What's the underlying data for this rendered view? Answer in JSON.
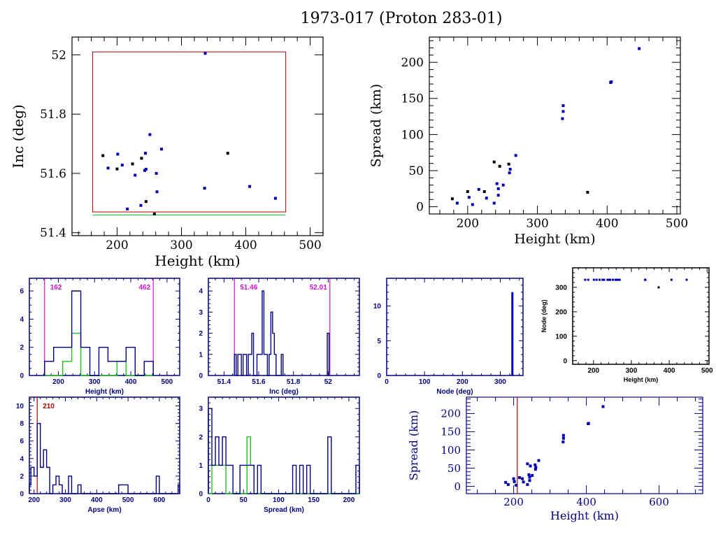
{
  "title": "1973-017 (Proton 283-01)",
  "colors": {
    "black": "#000000",
    "blue": "#0000b0",
    "navy": "#000080",
    "red": "#b00000",
    "green": "#20c020",
    "magenta": "#d010d0"
  },
  "chart_data": [
    {
      "id": "inc-vs-height",
      "type": "scatter",
      "title": "",
      "xlabel": "Height (km)",
      "ylabel": "Inc (deg)",
      "xlim": [
        130,
        520
      ],
      "ylim": [
        51.39,
        52.06
      ],
      "xticks": [
        200,
        300,
        400,
        500
      ],
      "yticks": [
        51.4,
        51.6,
        51.8,
        52
      ],
      "ytick_labels": [
        "51.4",
        "51.6",
        "51.8",
        "52"
      ],
      "box_red": {
        "x": [
          162,
          462
        ],
        "y": [
          51.47,
          52.01
        ]
      },
      "box_green": {
        "x": [
          162,
          462
        ],
        "y": [
          51.46,
          51.46
        ]
      },
      "series": [
        {
          "name": "black",
          "color": "#000000",
          "points": [
            [
              178,
              51.66
            ],
            [
              200,
              51.615
            ],
            [
              224,
              51.632
            ],
            [
              238,
              51.651
            ],
            [
              245,
              51.505
            ],
            [
              258,
              51.463
            ],
            [
              372,
              51.668
            ]
          ]
        },
        {
          "name": "blue",
          "color": "#0000b0",
          "points": [
            [
              186,
              51.618
            ],
            [
              201,
              51.665
            ],
            [
              208,
              51.628
            ],
            [
              216,
              51.48
            ],
            [
              228,
              51.594
            ],
            [
              237,
              51.492
            ],
            [
              243,
              51.61
            ],
            [
              244,
              51.668
            ],
            [
              245,
              51.614
            ],
            [
              251,
              51.731
            ],
            [
              261,
              51.6
            ],
            [
              262,
              51.538
            ],
            [
              269,
              51.682
            ],
            [
              336,
              51.55
            ],
            [
              337,
              52.005
            ],
            [
              406,
              51.556
            ],
            [
              446,
              51.516
            ]
          ]
        }
      ]
    },
    {
      "id": "spread-vs-height",
      "type": "scatter",
      "title": "",
      "xlabel": "Height (km)",
      "ylabel": "Spread (km)",
      "xlim": [
        145,
        505
      ],
      "ylim": [
        -10,
        235
      ],
      "xticks": [
        200,
        300,
        400,
        500
      ],
      "yticks": [
        0,
        50,
        100,
        150,
        200
      ],
      "series": [
        {
          "name": "black",
          "color": "#000000",
          "points": [
            [
              178,
              11
            ],
            [
              200,
              21
            ],
            [
              224,
              21
            ],
            [
              238,
              62
            ],
            [
              246,
              56
            ],
            [
              259,
              59
            ],
            [
              372,
              20
            ]
          ]
        },
        {
          "name": "blue",
          "color": "#0000b0",
          "points": [
            [
              185,
              5
            ],
            [
              202,
              13
            ],
            [
              207,
              3
            ],
            [
              216,
              24
            ],
            [
              227,
              12
            ],
            [
              238,
              5
            ],
            [
              242,
              32
            ],
            [
              244,
              25
            ],
            [
              244,
              16
            ],
            [
              251,
              30
            ],
            [
              260,
              47
            ],
            [
              261,
              52
            ],
            [
              269,
              71
            ],
            [
              336,
              122
            ],
            [
              337,
              132
            ],
            [
              337,
              140
            ],
            [
              405,
              172
            ],
            [
              406,
              173
            ],
            [
              446,
              219
            ]
          ]
        }
      ]
    },
    {
      "id": "height-histogram",
      "type": "bar",
      "xlabel": "Height (km)",
      "ylabel": "",
      "xlim": [
        120,
        535
      ],
      "ylim": [
        0,
        6.9
      ],
      "xticks": [
        200,
        300,
        400,
        500
      ],
      "yticks": [
        0,
        2,
        4,
        6
      ],
      "ytick_labels": [
        "0",
        "2",
        "4",
        "6"
      ],
      "bin_edges": [
        162,
        187,
        212,
        237,
        262,
        287,
        312,
        337,
        362,
        387,
        412,
        437,
        462
      ],
      "values": [
        1,
        2,
        2,
        6,
        2,
        0,
        2,
        1,
        1,
        2,
        0,
        1
      ],
      "values_green": [
        0,
        0,
        1,
        3,
        0,
        0,
        0,
        0,
        1,
        0,
        0,
        0
      ],
      "markers": [
        {
          "value": 162,
          "label": "162"
        },
        {
          "value": 462,
          "label": "462"
        }
      ]
    },
    {
      "id": "inc-histogram",
      "type": "bar",
      "xlabel": "Inc (deg)",
      "ylabel": "",
      "xlim": [
        51.31,
        52.18
      ],
      "ylim": [
        0,
        4.6
      ],
      "xticks": [
        51.4,
        51.6,
        51.8,
        52
      ],
      "xtick_labels": [
        "51.4",
        "51.6",
        "51.8",
        "52"
      ],
      "yticks": [
        0,
        1,
        2,
        3,
        4
      ],
      "bin_edges": [
        51.46,
        51.47,
        51.48,
        51.49,
        51.5,
        51.51,
        51.52,
        51.53,
        51.54,
        51.55,
        51.56,
        51.57,
        51.58,
        51.59,
        51.6,
        51.61,
        51.62,
        51.63,
        51.64,
        51.65,
        51.66,
        51.67,
        51.68,
        51.69,
        51.7,
        51.71,
        51.72,
        51.73,
        51.74
      ],
      "values": [
        1,
        0,
        1,
        1,
        0,
        1,
        1,
        0,
        1,
        1,
        2,
        0,
        0,
        1,
        1,
        1,
        4,
        1,
        1,
        0,
        1,
        3,
        2,
        1,
        0,
        0,
        0,
        1
      ],
      "extra_bins": [
        {
          "from": 51.995,
          "to": 52.005,
          "value": 2
        }
      ],
      "markers": [
        {
          "value": 51.46,
          "label": "51.46"
        },
        {
          "value": 52.01,
          "label": "52.01"
        }
      ]
    },
    {
      "id": "node-histogram",
      "type": "bar",
      "xlabel": "Node (deg)",
      "ylabel": "",
      "xlim": [
        0,
        360
      ],
      "ylim": [
        0,
        14
      ],
      "xticks": [
        0,
        100,
        200,
        300
      ],
      "yticks": [
        0,
        5,
        10
      ],
      "bins": [
        {
          "x": 331,
          "value": 12
        }
      ]
    },
    {
      "id": "node-vs-height",
      "type": "scatter",
      "xlabel": "Height (km)",
      "ylabel": "Node (deg)",
      "xlim": [
        145,
        505
      ],
      "ylim": [
        -15,
        380
      ],
      "xticks": [
        200,
        300,
        400,
        500
      ],
      "yticks": [
        0,
        100,
        200,
        300
      ],
      "series": [
        {
          "name": "blue",
          "color": "#0000b0",
          "points": [
            [
              178,
              331
            ],
            [
              186,
              331
            ],
            [
              201,
              331
            ],
            [
              208,
              331
            ],
            [
              216,
              331
            ],
            [
              224,
              331
            ],
            [
              228,
              331
            ],
            [
              237,
              331
            ],
            [
              242,
              331
            ],
            [
              244,
              331
            ],
            [
              251,
              331
            ],
            [
              258,
              331
            ],
            [
              261,
              331
            ],
            [
              264,
              331
            ],
            [
              269,
              331
            ],
            [
              336,
              331
            ],
            [
              337,
              331
            ],
            [
              406,
              331
            ],
            [
              446,
              331
            ]
          ]
        },
        {
          "name": "black",
          "color": "#000000",
          "points": [
            [
              372,
              300
            ]
          ]
        }
      ]
    },
    {
      "id": "apse-histogram",
      "type": "bar",
      "xlabel": "Apse (km)",
      "ylabel": "",
      "xlim": [
        185,
        665
      ],
      "ylim": [
        0,
        11
      ],
      "xticks": [
        200,
        300,
        400,
        500,
        600
      ],
      "yticks": [
        0,
        2,
        4,
        6,
        8,
        10
      ],
      "bin_edges": [
        185,
        190,
        200,
        210,
        220,
        230,
        240,
        250,
        260,
        270,
        280,
        290,
        300,
        310,
        320,
        330,
        340,
        350,
        360,
        370,
        380,
        390,
        400,
        410,
        420,
        430,
        440,
        450,
        460,
        470,
        480,
        490,
        500,
        510,
        520,
        530,
        540,
        550,
        560,
        570,
        580,
        590,
        600,
        610,
        620,
        630,
        640,
        650,
        660,
        665
      ],
      "values": [
        1,
        3,
        2,
        8,
        3,
        5,
        3,
        0,
        1,
        2,
        1,
        0,
        0,
        2,
        0,
        0,
        1,
        0,
        0,
        0,
        0,
        0,
        0,
        0,
        0,
        0,
        0,
        0,
        0,
        1,
        1,
        1,
        0,
        0,
        0,
        0,
        0,
        0,
        0,
        0,
        0,
        2,
        0,
        0,
        0,
        0,
        0,
        0,
        1
      ],
      "markers": [
        {
          "value": 210,
          "label": "210"
        }
      ]
    },
    {
      "id": "spread-histogram",
      "type": "bar",
      "xlabel": "Spread (km)",
      "ylabel": "",
      "xlim": [
        0,
        215
      ],
      "ylim": [
        0,
        3.4
      ],
      "xticks": [
        0,
        50,
        100,
        150,
        200
      ],
      "yticks": [
        0,
        1,
        2,
        3
      ],
      "bin_edges": [
        0,
        5,
        10,
        15,
        20,
        25,
        30,
        35,
        40,
        45,
        50,
        55,
        60,
        65,
        70,
        75,
        80,
        85,
        90,
        95,
        100,
        105,
        110,
        115,
        120,
        125,
        130,
        135,
        140,
        145,
        150,
        155,
        160,
        165,
        170,
        175,
        180,
        185,
        190,
        195,
        200,
        205,
        210,
        215
      ],
      "values": [
        3,
        1,
        2,
        1,
        2,
        1,
        1,
        0,
        0,
        1,
        1,
        1,
        1,
        0,
        1,
        0,
        0,
        0,
        0,
        0,
        0,
        0,
        0,
        0,
        1,
        0,
        1,
        0,
        1,
        0,
        0,
        0,
        0,
        0,
        2,
        0,
        0,
        0,
        0,
        0,
        0,
        0,
        1
      ],
      "values_green": [
        0,
        1,
        1,
        1,
        1,
        0,
        0,
        0,
        0,
        0,
        0,
        2,
        1,
        0,
        0,
        0,
        0,
        0,
        0,
        0,
        0,
        0,
        0,
        0,
        0,
        0,
        0,
        0,
        0,
        0,
        0,
        0,
        0,
        0,
        0,
        0,
        0,
        0,
        0,
        0,
        0,
        0,
        0
      ]
    },
    {
      "id": "spread-vs-height-wide",
      "type": "scatter",
      "xlabel": "Height (km)",
      "ylabel": "Spread (km)",
      "xlim": [
        70,
        720
      ],
      "ylim": [
        -20,
        245
      ],
      "xticks": [
        200,
        400,
        600
      ],
      "yticks": [
        0,
        50,
        100,
        150,
        200
      ],
      "markers": [
        {
          "value": 210,
          "label": ""
        }
      ],
      "series": [
        {
          "name": "blue",
          "color": "#0000b0",
          "points": [
            [
              178,
              11
            ],
            [
              185,
              5
            ],
            [
              200,
              21
            ],
            [
              202,
              13
            ],
            [
              207,
              3
            ],
            [
              216,
              24
            ],
            [
              224,
              21
            ],
            [
              227,
              12
            ],
            [
              238,
              5
            ],
            [
              238,
              62
            ],
            [
              242,
              32
            ],
            [
              244,
              25
            ],
            [
              244,
              16
            ],
            [
              246,
              56
            ],
            [
              251,
              30
            ],
            [
              259,
              59
            ],
            [
              260,
              47
            ],
            [
              261,
              52
            ],
            [
              269,
              71
            ],
            [
              336,
              122
            ],
            [
              337,
              132
            ],
            [
              337,
              140
            ],
            [
              405,
              172
            ],
            [
              406,
              173
            ],
            [
              446,
              219
            ]
          ]
        }
      ]
    }
  ]
}
